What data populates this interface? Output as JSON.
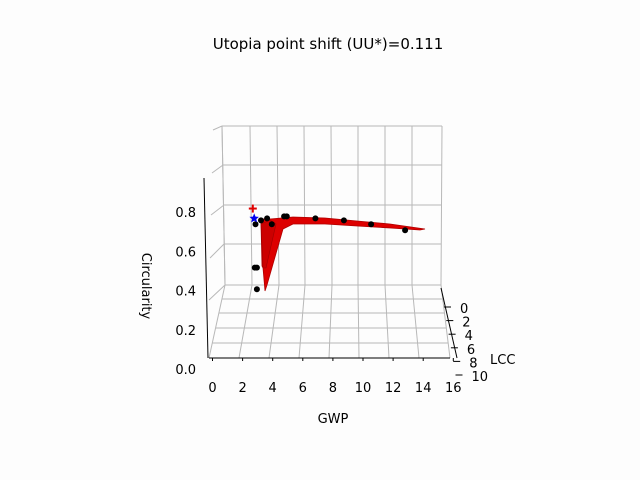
{
  "chart_data": {
    "type": "surface3d",
    "title": "Utopia point shift (UU*)=0.111",
    "xlabel": "GWP",
    "ylabel": "LCC",
    "zlabel": "Circularity",
    "xlim": [
      0,
      16
    ],
    "ylim": [
      0,
      10
    ],
    "zlim": [
      0.0,
      1.0
    ],
    "x_ticks": [
      "0",
      "2",
      "4",
      "6",
      "8",
      "10",
      "12",
      "14",
      "16"
    ],
    "y_ticks": [
      "0",
      "2",
      "4",
      "6",
      "8",
      "10"
    ],
    "z_ticks": [
      "0.0",
      "0.2",
      "0.4",
      "0.6",
      "0.8"
    ],
    "grid": true,
    "colors": {
      "surface": "#dd0000",
      "surface_edge": "#b00000",
      "points": "#000000",
      "utopia_shifted": "#e00000",
      "utopia": "#0000ee"
    },
    "pareto_points": [
      {
        "gwp": 4.05,
        "lcc": 1.0,
        "circularity": 0.8
      },
      {
        "gwp": 5.3,
        "lcc": 1.0,
        "circularity": 0.81
      },
      {
        "gwp": 5.5,
        "lcc": 1.0,
        "circularity": 0.81
      },
      {
        "gwp": 7.6,
        "lcc": 1.0,
        "circularity": 0.8
      },
      {
        "gwp": 9.7,
        "lcc": 1.0,
        "circularity": 0.79
      },
      {
        "gwp": 11.7,
        "lcc": 1.0,
        "circularity": 0.77
      },
      {
        "gwp": 14.2,
        "lcc": 1.0,
        "circularity": 0.74
      },
      {
        "gwp": 3.6,
        "lcc": 1.0,
        "circularity": 0.79
      },
      {
        "gwp": 3.2,
        "lcc": 1.0,
        "circularity": 0.77
      },
      {
        "gwp": 4.4,
        "lcc": 1.0,
        "circularity": 0.77
      },
      {
        "gwp": 3.15,
        "lcc": 1.0,
        "circularity": 0.55
      },
      {
        "gwp": 3.3,
        "lcc": 1.0,
        "circularity": 0.55
      },
      {
        "gwp": 3.3,
        "lcc": 1.0,
        "circularity": 0.44
      }
    ],
    "utopia_point": {
      "gwp": 3.1,
      "lcc": 1.0,
      "circularity": 0.8
    },
    "shifted_utopia_point": {
      "gwp": 3.0,
      "lcc": 1.0,
      "circularity": 0.85
    }
  }
}
